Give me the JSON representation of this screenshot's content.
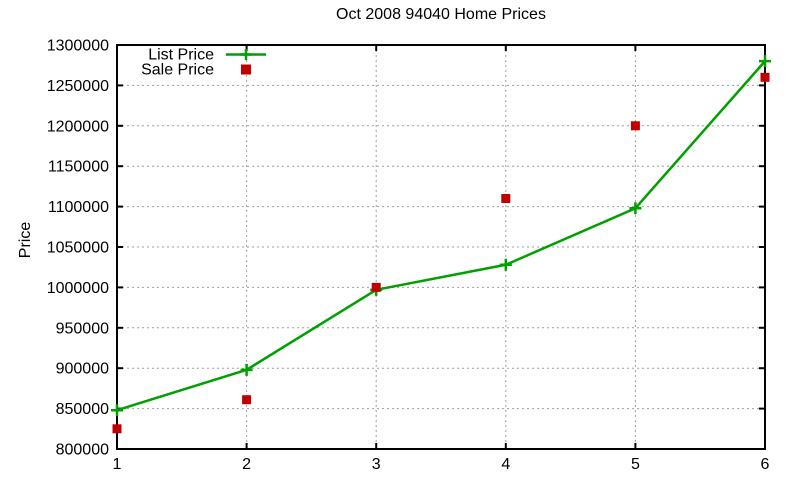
{
  "chart_data": {
    "type": "line",
    "title": "Oct 2008 94040 Home Prices",
    "xlabel": "",
    "ylabel": "Price",
    "x": [
      1,
      2,
      3,
      4,
      5,
      6
    ],
    "xlim": [
      1,
      6
    ],
    "ylim": [
      800000,
      1300000
    ],
    "xticks": [
      1,
      2,
      3,
      4,
      5,
      6
    ],
    "yticks": [
      800000,
      850000,
      900000,
      950000,
      1000000,
      1050000,
      1100000,
      1150000,
      1200000,
      1250000,
      1300000
    ],
    "ytick_step": 50000,
    "grid": true,
    "legend_position": "top-left-inside",
    "series": [
      {
        "name": "List Price",
        "style": "line-with-plus-markers",
        "marker": "plus",
        "color": "#00a000",
        "values": [
          848000,
          898000,
          997000,
          1028000,
          1098000,
          1280000
        ]
      },
      {
        "name": "Sale Price",
        "style": "scatter-squares",
        "marker": "square",
        "color": "#c00000",
        "values": [
          825000,
          861000,
          1000000,
          1110000,
          1200000,
          1260000
        ]
      }
    ],
    "colors": {
      "grid": "#9e9e9e",
      "axis": "#000000",
      "text": "#000000",
      "background": "#ffffff"
    }
  }
}
